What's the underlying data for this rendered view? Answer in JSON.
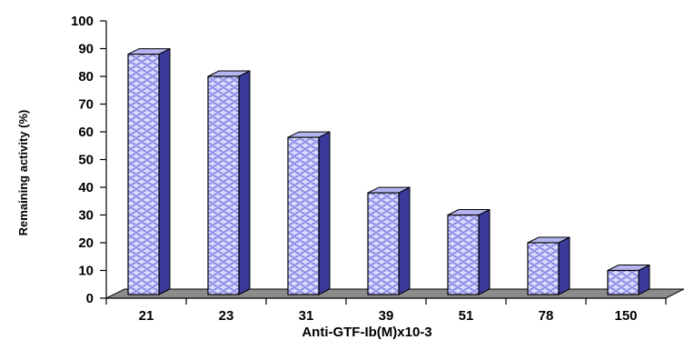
{
  "chart_data": {
    "type": "bar",
    "categories": [
      "21",
      "23",
      "31",
      "39",
      "51",
      "78",
      "150"
    ],
    "values": [
      88,
      80,
      58,
      38,
      30,
      20,
      10
    ],
    "title": "",
    "xlabel": "Anti-GTF-Ib(M)x10-3",
    "ylabel": "Remaining activity (%)",
    "ylim": [
      0,
      100
    ],
    "yticks": [
      "0",
      "10",
      "20",
      "30",
      "40",
      "50",
      "60",
      "70",
      "80",
      "90",
      "100"
    ],
    "grid": false,
    "legend": "none",
    "style": "3d-column",
    "colors": {
      "bar_face": "#dcdcff",
      "bar_pattern": "#8c8ce6",
      "bar_side": "#3a3a9a",
      "bar_top": "#b4b4f0",
      "floor": "#8c8c8c"
    }
  }
}
